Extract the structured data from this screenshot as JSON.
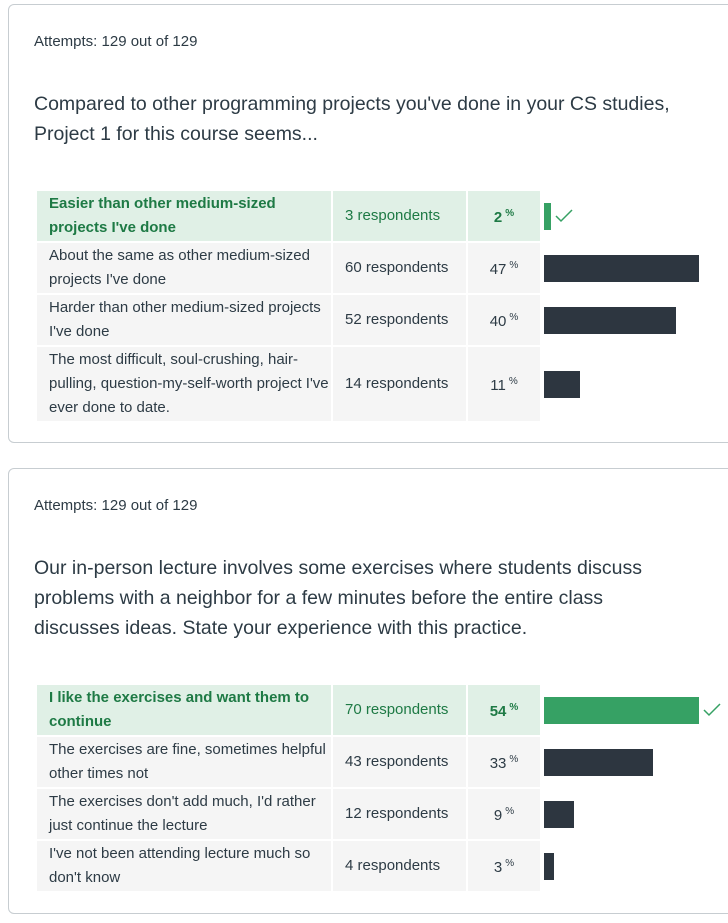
{
  "questions": [
    {
      "attempts": "Attempts: 129 out of 129",
      "text": "Compared to other programming projects you've done in your CS studies, Project 1 for this course seems...",
      "answers": [
        {
          "label": "Easier than other medium-sized projects I've done",
          "respondents": "3 respondents",
          "percent": 2,
          "percent_text": "2",
          "correct": true
        },
        {
          "label": "About the same as other medium-sized projects I've done",
          "respondents": "60 respondents",
          "percent": 47,
          "percent_text": "47",
          "correct": false
        },
        {
          "label": "Harder than other medium-sized projects I've done",
          "respondents": "52 respondents",
          "percent": 40,
          "percent_text": "40",
          "correct": false
        },
        {
          "label": "The most difficult, soul-crushing, hair-pulling, question-my-self-worth project I've ever done to date.",
          "respondents": "14 respondents",
          "percent": 11,
          "percent_text": "11",
          "correct": false
        }
      ]
    },
    {
      "attempts": "Attempts: 129 out of 129",
      "text": "Our in-person lecture involves some exercises where students discuss problems with a neighbor for a few minutes before the entire class discusses ideas. State your experience with this practice.",
      "answers": [
        {
          "label": "I like the exercises and want them to continue",
          "respondents": "70 respondents",
          "percent": 54,
          "percent_text": "54",
          "correct": true
        },
        {
          "label": "The exercises are fine, sometimes helpful other times not",
          "respondents": "43 respondents",
          "percent": 33,
          "percent_text": "33",
          "correct": false
        },
        {
          "label": "The exercises don't add much, I'd rather just continue the lecture",
          "respondents": "12 respondents",
          "percent": 9,
          "percent_text": "9",
          "correct": false
        },
        {
          "label": "I've not been attending lecture much so don't know",
          "respondents": "4 respondents",
          "percent": 3,
          "percent_text": "3",
          "correct": false
        }
      ]
    }
  ],
  "percent_symbol": "%",
  "colors": {
    "correct_bar": "#36a164",
    "bar": "#2d3640",
    "correct_text": "#1e7a45",
    "correct_bg": "#e0f0e6"
  }
}
